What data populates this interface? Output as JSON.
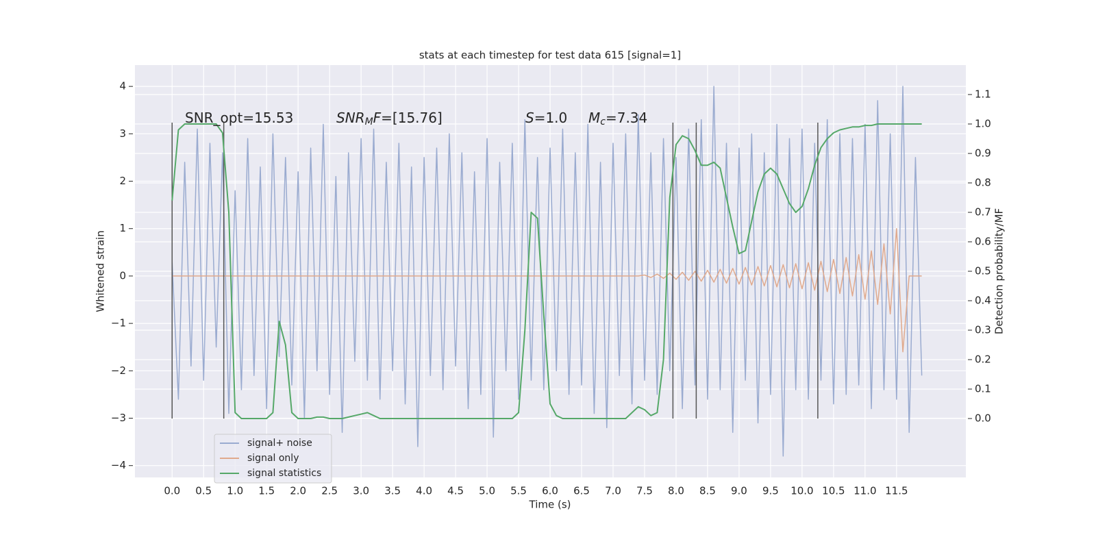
{
  "chart_data": {
    "type": "line",
    "title": "stats at each timestep for test data 615 [signal=1]",
    "x_label": "Time (s)",
    "y_label": "Whitened strain",
    "y2_label": "Detection probability/MF",
    "xlim": [
      -0.59,
      12.6
    ],
    "ylim": [
      -4.25,
      4.45
    ],
    "y2lim": [
      -0.2,
      1.2
    ],
    "xticks": [
      {
        "value": 0,
        "label": "0.0"
      },
      0.5,
      {
        "value": 1,
        "label": "1.0"
      },
      1.5,
      {
        "value": 2,
        "label": "2.0"
      },
      2.5,
      {
        "value": 3,
        "label": "3.0"
      },
      3.5,
      {
        "value": 4,
        "label": "4.0"
      },
      4.5,
      {
        "value": 5,
        "label": "5.0"
      },
      5.5,
      {
        "value": 6,
        "label": "6.0"
      },
      6.5,
      {
        "value": 7,
        "label": "7.0"
      },
      7.5,
      {
        "value": 8,
        "label": "8.0"
      },
      8.5,
      {
        "value": 9,
        "label": "9.0"
      },
      9.5,
      {
        "value": 10,
        "label": "10.0"
      },
      10.5,
      {
        "value": 11,
        "label": "11.0"
      },
      11.5
    ],
    "yticks": [
      {
        "value": -4,
        "label": "−4"
      },
      {
        "value": -3,
        "label": "−3"
      },
      {
        "value": -2,
        "label": "−2"
      },
      {
        "value": -1,
        "label": "−1"
      },
      0,
      1,
      2,
      3,
      4
    ],
    "y2ticks": [
      {
        "value": 0,
        "label": "0.0"
      },
      0.1,
      0.2,
      0.3,
      0.4,
      0.5,
      0.6,
      0.7,
      0.8,
      0.9,
      {
        "value": 1,
        "label": "1.0"
      },
      1.1
    ],
    "grid": true,
    "legend_loc": "lower left",
    "x": [
      0.0,
      0.1,
      0.2,
      0.3,
      0.4,
      0.5,
      0.6,
      0.7,
      0.8,
      0.9,
      1.0,
      1.1,
      1.2,
      1.3,
      1.4,
      1.5,
      1.6,
      1.7,
      1.8,
      1.9,
      2.0,
      2.1,
      2.2,
      2.3,
      2.4,
      2.5,
      2.6,
      2.7,
      2.8,
      2.9,
      3.0,
      3.1,
      3.2,
      3.3,
      3.4,
      3.5,
      3.6,
      3.7,
      3.8,
      3.9,
      4.0,
      4.1,
      4.2,
      4.3,
      4.4,
      4.5,
      4.6,
      4.7,
      4.8,
      4.9,
      5.0,
      5.1,
      5.2,
      5.3,
      5.4,
      5.5,
      5.6,
      5.7,
      5.8,
      5.9,
      6.0,
      6.1,
      6.2,
      6.3,
      6.4,
      6.5,
      6.6,
      6.7,
      6.8,
      6.9,
      7.0,
      7.1,
      7.2,
      7.3,
      7.4,
      7.5,
      7.6,
      7.7,
      7.8,
      7.9,
      8.0,
      8.1,
      8.2,
      8.3,
      8.4,
      8.5,
      8.6,
      8.7,
      8.8,
      8.9,
      9.0,
      9.1,
      9.2,
      9.3,
      9.4,
      9.5,
      9.6,
      9.7,
      9.8,
      9.9,
      10.0,
      10.1,
      10.2,
      10.3,
      10.4,
      10.5,
      10.6,
      10.7,
      10.8,
      10.9,
      11.0,
      11.1,
      11.2,
      11.3,
      11.4,
      11.5,
      11.6,
      11.7,
      11.8,
      11.9
    ],
    "series": [
      {
        "name": "signal+ noise",
        "color": "#9aabd0",
        "values": [
          0.3,
          -2.6,
          2.4,
          -1.9,
          3.1,
          -2.2,
          2.8,
          -1.5,
          2.6,
          -2.9,
          1.8,
          -2.4,
          2.9,
          -2.1,
          2.3,
          -2.8,
          3.0,
          -1.7,
          2.5,
          -2.3,
          2.2,
          -3.0,
          2.7,
          -2.0,
          3.2,
          -2.5,
          2.1,
          -3.3,
          2.6,
          -1.8,
          2.9,
          -2.2,
          3.1,
          -2.6,
          2.4,
          -2.0,
          2.8,
          -2.7,
          2.3,
          -3.6,
          2.5,
          -2.1,
          2.7,
          -2.4,
          3.0,
          -1.9,
          2.6,
          -2.8,
          2.2,
          -2.5,
          2.9,
          -3.4,
          2.4,
          -2.0,
          2.8,
          -2.6,
          3.3,
          -2.2,
          2.5,
          -2.4,
          2.7,
          -2.0,
          3.1,
          -2.5,
          2.6,
          -2.3,
          3.2,
          -2.9,
          2.4,
          -3.2,
          2.8,
          -2.1,
          3.0,
          -2.7,
          3.4,
          -2.2,
          2.6,
          -2.5,
          2.9,
          -2.0,
          2.5,
          -2.8,
          3.1,
          -2.3,
          3.3,
          -2.6,
          4.0,
          -2.4,
          2.8,
          -3.3,
          2.7,
          -2.2,
          3.0,
          -3.1,
          2.6,
          -2.5,
          3.2,
          -3.8,
          2.9,
          -2.4,
          3.1,
          -2.6,
          2.8,
          -2.2,
          3.3,
          -2.7,
          3.0,
          -2.5,
          2.9,
          -2.3,
          3.2,
          -2.8,
          3.7,
          -2.4,
          3.0,
          -2.6,
          4.0,
          -3.3,
          2.5,
          -2.1
        ]
      },
      {
        "name": "signal only",
        "color": "#e0a98c",
        "values": [
          0,
          0,
          0,
          0,
          0,
          0,
          0,
          0,
          0,
          0,
          0,
          0,
          0,
          0,
          0,
          0,
          0,
          0,
          0,
          0,
          0,
          0,
          0,
          0,
          0,
          0,
          0,
          0,
          0,
          0,
          0,
          0,
          0,
          0,
          0,
          0,
          0,
          0,
          0,
          0,
          0,
          0,
          0,
          0,
          0,
          0,
          0,
          0,
          0,
          0,
          0,
          0,
          0,
          0,
          0,
          0,
          0,
          0,
          0,
          0,
          0,
          0,
          0,
          0,
          0,
          0,
          0,
          0,
          0,
          0,
          0,
          0,
          0,
          0,
          0,
          0.02,
          -0.03,
          0.04,
          -0.05,
          0.06,
          -0.07,
          0.08,
          -0.09,
          0.1,
          -0.11,
          0.12,
          -0.13,
          0.14,
          -0.15,
          0.16,
          -0.17,
          0.18,
          -0.19,
          0.2,
          -0.21,
          0.22,
          -0.23,
          0.24,
          -0.25,
          0.26,
          -0.27,
          0.28,
          -0.3,
          0.31,
          -0.33,
          0.35,
          -0.37,
          0.39,
          -0.42,
          0.45,
          -0.49,
          0.53,
          -0.6,
          0.68,
          -0.8,
          1.0,
          -1.6,
          0,
          0,
          0
        ]
      },
      {
        "name": "signal statistics",
        "color": "#55a868",
        "axis": "y2",
        "values": [
          0.74,
          0.98,
          1.0,
          1.0,
          1.0,
          1.0,
          1.0,
          1.0,
          0.97,
          0.7,
          0.02,
          0,
          0,
          0,
          0,
          0,
          0.02,
          0.33,
          0.25,
          0.02,
          0,
          0,
          0,
          0.005,
          0.005,
          0,
          0,
          0,
          0.005,
          0.01,
          0.015,
          0.02,
          0.01,
          0,
          0,
          0,
          0,
          0,
          0,
          0,
          0,
          0,
          0,
          0,
          0,
          0,
          0,
          0,
          0,
          0,
          0,
          0,
          0,
          0,
          0,
          0.02,
          0.3,
          0.7,
          0.68,
          0.35,
          0.05,
          0.01,
          0,
          0,
          0,
          0,
          0,
          0,
          0,
          0,
          0,
          0,
          0,
          0.02,
          0.04,
          0.03,
          0.01,
          0.02,
          0.2,
          0.75,
          0.93,
          0.96,
          0.95,
          0.91,
          0.86,
          0.86,
          0.87,
          0.85,
          0.75,
          0.65,
          0.56,
          0.57,
          0.67,
          0.77,
          0.83,
          0.85,
          0.83,
          0.78,
          0.73,
          0.7,
          0.72,
          0.78,
          0.86,
          0.92,
          0.95,
          0.97,
          0.98,
          0.985,
          0.99,
          0.99,
          0.995,
          0.995,
          1.0,
          1.0,
          1.0,
          1.0,
          1.0,
          1.0,
          1.0,
          1.0
        ]
      }
    ],
    "vlines": [
      0.0,
      0.82,
      7.95,
      8.32,
      10.25
    ],
    "vline_color": "#555555",
    "annotations": [
      {
        "parts": [
          {
            "text": "SNR_opt=15.53"
          }
        ]
      },
      {
        "parts": [
          {
            "text": "SNR",
            "italic": true
          },
          {
            "text": "M",
            "italic": true,
            "sub": true
          },
          {
            "text": "F",
            "italic": true
          },
          {
            "text": "=[15.76]"
          }
        ]
      },
      {
        "parts": [
          {
            "text": "S",
            "italic": true
          },
          {
            "text": "=1.0"
          }
        ]
      },
      {
        "parts": [
          {
            "text": "M",
            "italic": true
          },
          {
            "text": "c",
            "italic": true,
            "sub": true
          },
          {
            "text": "=7.34"
          }
        ]
      }
    ]
  }
}
